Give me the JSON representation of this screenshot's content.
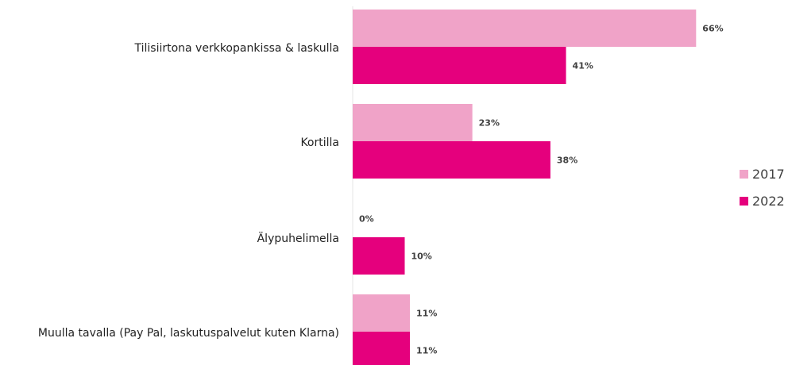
{
  "chart_data": {
    "type": "bar",
    "orientation": "horizontal",
    "categories": [
      "Tilisiirtona verkkopankissa & laskulla",
      "Kortilla",
      "Älypuhelimella",
      "Muulla tavalla (Pay Pal, laskutuspalvelut kuten Klarna)"
    ],
    "series": [
      {
        "name": "2017",
        "color": "#f0a3c8",
        "values": [
          66,
          23,
          0,
          11
        ],
        "labels": [
          "66%",
          "23%",
          "0%",
          "11%"
        ]
      },
      {
        "name": "2022",
        "color": "#e5007d",
        "values": [
          41,
          38,
          10,
          11
        ],
        "labels": [
          "41%",
          "38%",
          "10%",
          "11%"
        ]
      }
    ],
    "value_unit": "%",
    "xlim": [
      0,
      75
    ],
    "grid": false,
    "legend_position": "right"
  }
}
